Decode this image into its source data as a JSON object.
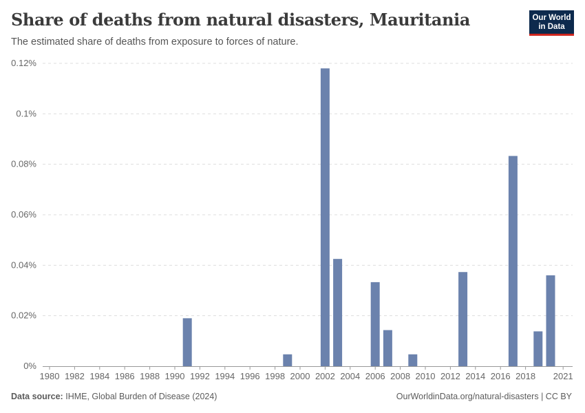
{
  "header": {
    "title": "Share of deaths from natural disasters, Mauritania",
    "subtitle": "The estimated share of deaths from exposure to forces of nature."
  },
  "logo": {
    "line1": "Our World",
    "line2": "in Data"
  },
  "footer": {
    "source_label": "Data source:",
    "source_text": "IHME, Global Burden of Disease (2024)",
    "url": "OurWorldinData.org/natural-disasters",
    "license": "CC BY",
    "separator": "|"
  },
  "colors": {
    "bar": "#6b82ad",
    "grid": "#dddddd",
    "axis": "#999999",
    "tick_text": "#666666"
  },
  "chart_data": {
    "type": "bar",
    "title": "Share of deaths from natural disasters, Mauritania",
    "xlabel": "",
    "ylabel": "",
    "unit": "%",
    "ylim": [
      0,
      0.12
    ],
    "xlim": [
      1980,
      2021
    ],
    "grid": true,
    "yticks": [
      0,
      0.02,
      0.04,
      0.06,
      0.08,
      0.1,
      0.12
    ],
    "ytick_labels": [
      "0%",
      "0.02%",
      "0.04%",
      "0.06%",
      "0.08%",
      "0.1%",
      "0.12%"
    ],
    "xtick_labels": [
      "1980",
      "1982",
      "1984",
      "1986",
      "1988",
      "1990",
      "1992",
      "1994",
      "1996",
      "1998",
      "2000",
      "2002",
      "2004",
      "2006",
      "2008",
      "2010",
      "2012",
      "2014",
      "2016",
      "2018",
      "2021"
    ],
    "series": [
      {
        "name": "Mauritania",
        "points": [
          {
            "year": 1991,
            "value": 0.019
          },
          {
            "year": 1999,
            "value": 0.0047
          },
          {
            "year": 2002,
            "value": 0.118
          },
          {
            "year": 2003,
            "value": 0.0425
          },
          {
            "year": 2006,
            "value": 0.0333
          },
          {
            "year": 2007,
            "value": 0.0143
          },
          {
            "year": 2009,
            "value": 0.0047
          },
          {
            "year": 2013,
            "value": 0.0373
          },
          {
            "year": 2017,
            "value": 0.0833
          },
          {
            "year": 2019,
            "value": 0.0138
          },
          {
            "year": 2020,
            "value": 0.036
          }
        ]
      }
    ]
  }
}
